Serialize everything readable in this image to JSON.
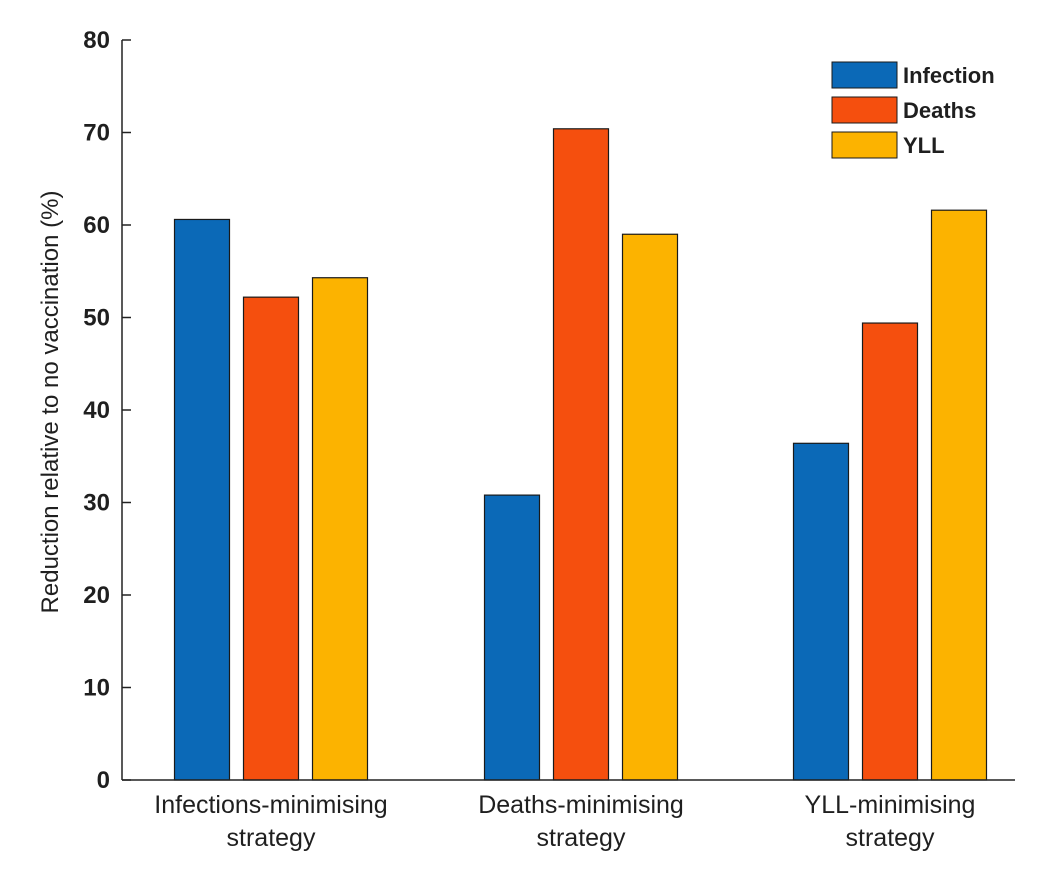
{
  "chart_data": {
    "type": "bar",
    "title": "",
    "xlabel": "",
    "ylabel": "Reduction relative to no vaccination (%)",
    "ylim": [
      0,
      80
    ],
    "yticks": [
      0,
      10,
      20,
      30,
      40,
      50,
      60,
      70,
      80
    ],
    "grid": false,
    "legend_position": "top-right",
    "categories": [
      [
        "Infections-minimising",
        "strategy"
      ],
      [
        "Deaths-minimising",
        "strategy"
      ],
      [
        "YLL-minimising",
        "strategy"
      ]
    ],
    "series": [
      {
        "name": "Infection",
        "color": "#0b69b7",
        "values": [
          60.6,
          30.8,
          36.4
        ]
      },
      {
        "name": "Deaths",
        "color": "#f54f0e",
        "values": [
          52.2,
          70.4,
          49.4
        ]
      },
      {
        "name": "YLL",
        "color": "#fcb300",
        "values": [
          54.3,
          59.0,
          61.6
        ]
      }
    ]
  }
}
